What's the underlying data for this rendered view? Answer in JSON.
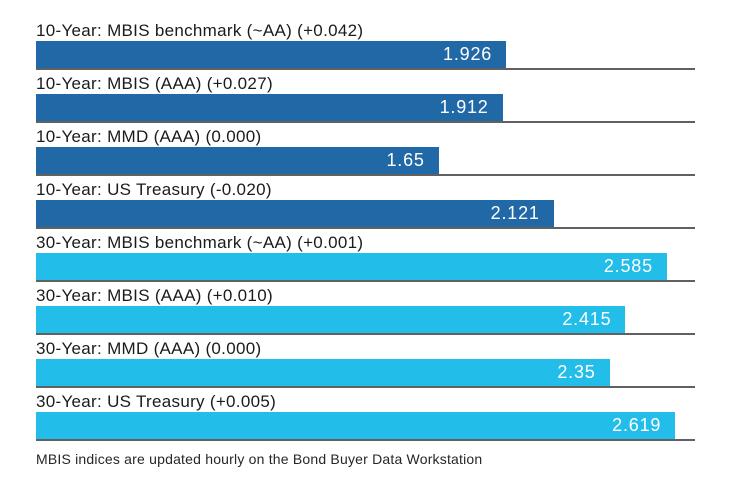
{
  "chart_data": {
    "type": "bar",
    "orientation": "horizontal",
    "axis_max": 2.7,
    "grid": true,
    "value_labels_inside_bars": true,
    "colors": {
      "ten_year_bar": "#2069A6",
      "thirty_year_bar": "#22BDE9",
      "gridline": "#616161",
      "label_text": "#1B1B1B",
      "value_text": "#FFFFFF"
    },
    "bars": [
      {
        "label": "10-Year: MBIS benchmark (~AA) (+0.042)",
        "value": 1.926,
        "value_label": "1.926",
        "group": "10-year"
      },
      {
        "label": "10-Year: MBIS (AAA) (+0.027)",
        "value": 1.912,
        "value_label": "1.912",
        "group": "10-year"
      },
      {
        "label": "10-Year: MMD (AAA) (0.000)",
        "value": 1.65,
        "value_label": "1.65",
        "group": "10-year"
      },
      {
        "label": "10-Year: US Treasury (-0.020)",
        "value": 2.121,
        "value_label": "2.121",
        "group": "10-year"
      },
      {
        "label": "30-Year: MBIS benchmark (~AA) (+0.001)",
        "value": 2.585,
        "value_label": "2.585",
        "group": "30-year"
      },
      {
        "label": "30-Year: MBIS (AAA) (+0.010)",
        "value": 2.415,
        "value_label": "2.415",
        "group": "30-year"
      },
      {
        "label": "30-Year: MMD (AAA) (0.000)",
        "value": 2.35,
        "value_label": "2.35",
        "group": "30-year"
      },
      {
        "label": "30-Year: US Treasury (+0.005)",
        "value": 2.619,
        "value_label": "2.619",
        "group": "30-year"
      }
    ],
    "footnote": "MBIS indices are updated hourly on the Bond Buyer Data Workstation"
  }
}
